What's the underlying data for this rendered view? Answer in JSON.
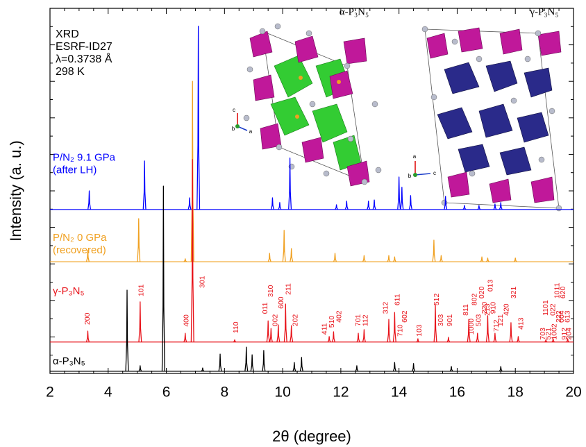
{
  "chart_data": {
    "type": "line",
    "xlabel": "2θ (degree)",
    "ylabel": "Intensity (a. u.)",
    "xlim": [
      2,
      20
    ],
    "xticks": [
      2,
      4,
      6,
      8,
      10,
      12,
      14,
      16,
      18,
      20
    ],
    "xminorticks": [
      2.5,
      3,
      3.5,
      4.5,
      5,
      5.5,
      6.5,
      7,
      7.5,
      8.5,
      9,
      9.5,
      10.5,
      11,
      11.5,
      12.5,
      13,
      13.5,
      14.5,
      15,
      15.5,
      16.5,
      17,
      17.5,
      18.5,
      19,
      19.5
    ],
    "ylim": [
      0,
      100
    ],
    "yticks": [
      0,
      5,
      10,
      15,
      20,
      25,
      30,
      35,
      40,
      45,
      50,
      55,
      60,
      65,
      70,
      75,
      80,
      85,
      90,
      95,
      100
    ],
    "ytick_labels": false,
    "info": [
      "XRD",
      "ESRF-ID27",
      "λ=0.3738 Å",
      "298 K"
    ],
    "series": [
      {
        "name": "P/N₂  9.1 GPa",
        "sublabel": "(after LH)",
        "label_y": 59.0,
        "color": "#0000ff",
        "baseline": 44.9,
        "x": [
          3.35,
          5.25,
          6.8,
          7.1,
          9.65,
          9.9,
          10.25,
          11.85,
          12.2,
          12.95,
          13.15,
          14.0,
          14.1,
          14.4,
          15.6,
          16.25,
          16.75,
          17.3,
          17.5
        ],
        "values": [
          50.0,
          58.2,
          48.1,
          95.1,
          48.1,
          46.8,
          59.0,
          46.2,
          47.2,
          47.2,
          47.5,
          53.8,
          51.0,
          48.7,
          48.5,
          46.0,
          46.0,
          46.4,
          46.8
        ]
      },
      {
        "name": "P/N₂  0 GPa",
        "sublabel": "(recovered)",
        "label_y": 37.1,
        "color": "#f0a020",
        "baseline": 30.6,
        "x": [
          3.3,
          5.05,
          6.65,
          6.9,
          9.55,
          10.05,
          10.3,
          11.8,
          12.8,
          13.65,
          13.85,
          15.2,
          15.45,
          16.85,
          17.05,
          18.0
        ],
        "values": [
          33.8,
          42.4,
          31.4,
          80.0,
          32.9,
          39.2,
          34.2,
          32.9,
          32.3,
          32.3,
          31.9,
          36.5,
          32.3,
          31.9,
          31.6,
          31.6
        ]
      },
      {
        "name": "γ-P₃N₅",
        "label_y": 22.4,
        "color": "#e8141b",
        "baseline": 8.6,
        "x": [
          3.3,
          5.1,
          6.65,
          6.9,
          8.35,
          9.5,
          9.6,
          9.85,
          10.1,
          10.3,
          11.6,
          11.75,
          12.6,
          12.8,
          13.65,
          13.85,
          14.65,
          15.25,
          15.7,
          16.4,
          16.7,
          17.05,
          17.3,
          17.85,
          18.1,
          19.05,
          19.3,
          19.8
        ],
        "values": [
          11.6,
          19.6,
          11.0,
          58.6,
          9.2,
          14.4,
          12.3,
          13.3,
          19.0,
          13.1,
          10.1,
          11.4,
          11.0,
          12.0,
          14.8,
          16.7,
          9.5,
          18.6,
          9.9,
          14.8,
          11.0,
          15.8,
          11.0,
          13.9,
          10.1,
          9.2,
          9.5,
          9.5
        ]
      },
      {
        "name": "α-P₃N₅",
        "label_y": 3.2,
        "color": "#000000",
        "baseline": 0.6,
        "x": [
          4.65,
          5.1,
          5.9,
          7.25,
          7.85,
          8.75,
          8.95,
          9.35,
          10.4,
          10.65,
          12.55,
          13.85,
          14.5,
          15.8,
          17.5
        ],
        "values": [
          22.8,
          2.1,
          51.3,
          1.5,
          5.3,
          7.2,
          5.1,
          6.3,
          3.0,
          4.4,
          2.1,
          3.0,
          2.7,
          1.9,
          1.9
        ]
      }
    ],
    "peak_labels": {
      "color": "#e8141b",
      "items": [
        {
          "text": "200",
          "x": 3.3,
          "y": 13.3
        },
        {
          "text": "101",
          "x": 5.15,
          "y": 21.1
        },
        {
          "text": "400",
          "x": 6.7,
          "y": 12.8
        },
        {
          "text": "301",
          "x": 7.25,
          "y": 23.4
        },
        {
          "text": "110",
          "x": 8.4,
          "y": 11.0
        },
        {
          "text": "011",
          "x": 9.4,
          "y": 16.3
        },
        {
          "text": "310",
          "x": 9.6,
          "y": 20.9
        },
        {
          "text": "002",
          "x": 9.75,
          "y": 12.9
        },
        {
          "text": "600",
          "x": 9.95,
          "y": 17.7
        },
        {
          "text": "211",
          "x": 10.2,
          "y": 21.5
        },
        {
          "text": "202",
          "x": 10.45,
          "y": 12.9
        },
        {
          "text": "411",
          "x": 11.45,
          "y": 10.6
        },
        {
          "text": "510",
          "x": 11.7,
          "y": 12.5
        },
        {
          "text": "402",
          "x": 11.95,
          "y": 13.9
        },
        {
          "text": "701",
          "x": 12.6,
          "y": 12.9
        },
        {
          "text": "112",
          "x": 12.85,
          "y": 12.9
        },
        {
          "text": "312",
          "x": 13.55,
          "y": 16.3
        },
        {
          "text": "611",
          "x": 13.95,
          "y": 18.6
        },
        {
          "text": "710",
          "x": 14.05,
          "y": 10.1
        },
        {
          "text": "602",
          "x": 14.2,
          "y": 13.9
        },
        {
          "text": "103",
          "x": 14.7,
          "y": 10.1
        },
        {
          "text": "512",
          "x": 15.3,
          "y": 18.6
        },
        {
          "text": "303",
          "x": 15.45,
          "y": 12.9
        },
        {
          "text": "901",
          "x": 15.75,
          "y": 12.9
        },
        {
          "text": "811",
          "x": 16.3,
          "y": 15.8
        },
        {
          "text": "1000",
          "x": 16.5,
          "y": 10.6
        },
        {
          "text": "802",
          "x": 16.6,
          "y": 18.6
        },
        {
          "text": "503",
          "x": 16.75,
          "y": 12.9
        },
        {
          "text": "020",
          "x": 16.85,
          "y": 20.5
        },
        {
          "text": "220",
          "x": 16.95,
          "y": 16.3
        },
        {
          "text": "213",
          "x": 17.05,
          "y": 15.8
        },
        {
          "text": "013",
          "x": 17.15,
          "y": 22.4
        },
        {
          "text": "910",
          "x": 17.25,
          "y": 16.3
        },
        {
          "text": "712",
          "x": 17.35,
          "y": 11.4
        },
        {
          "text": "121",
          "x": 17.5,
          "y": 12.9
        },
        {
          "text": "420",
          "x": 17.7,
          "y": 15.8
        },
        {
          "text": "321",
          "x": 17.95,
          "y": 20.5
        },
        {
          "text": "413",
          "x": 18.2,
          "y": 12.0
        },
        {
          "text": "703",
          "x": 18.95,
          "y": 9.2
        },
        {
          "text": "1101",
          "x": 19.05,
          "y": 15.8
        },
        {
          "text": "521",
          "x": 19.15,
          "y": 9.2
        },
        {
          "text": "022",
          "x": 19.3,
          "y": 15.8
        },
        {
          "text": "1002",
          "x": 19.35,
          "y": 9.2
        },
        {
          "text": "1011",
          "x": 19.45,
          "y": 20.5
        },
        {
          "text": "222",
          "x": 19.5,
          "y": 13.9
        },
        {
          "text": "004",
          "x": 19.6,
          "y": 13.9
        },
        {
          "text": "620",
          "x": 19.65,
          "y": 20.5
        },
        {
          "text": "912",
          "x": 19.7,
          "y": 9.2
        },
        {
          "text": "613",
          "x": 19.8,
          "y": 13.9
        },
        {
          "text": "204",
          "x": 19.85,
          "y": 9.2
        }
      ]
    },
    "structures": [
      {
        "title": "α-P₃N₅",
        "axes": [
          "c",
          "b",
          "a"
        ]
      },
      {
        "title": "γ-P₃N₅",
        "axes": [
          "a",
          "b",
          "c"
        ]
      }
    ]
  }
}
